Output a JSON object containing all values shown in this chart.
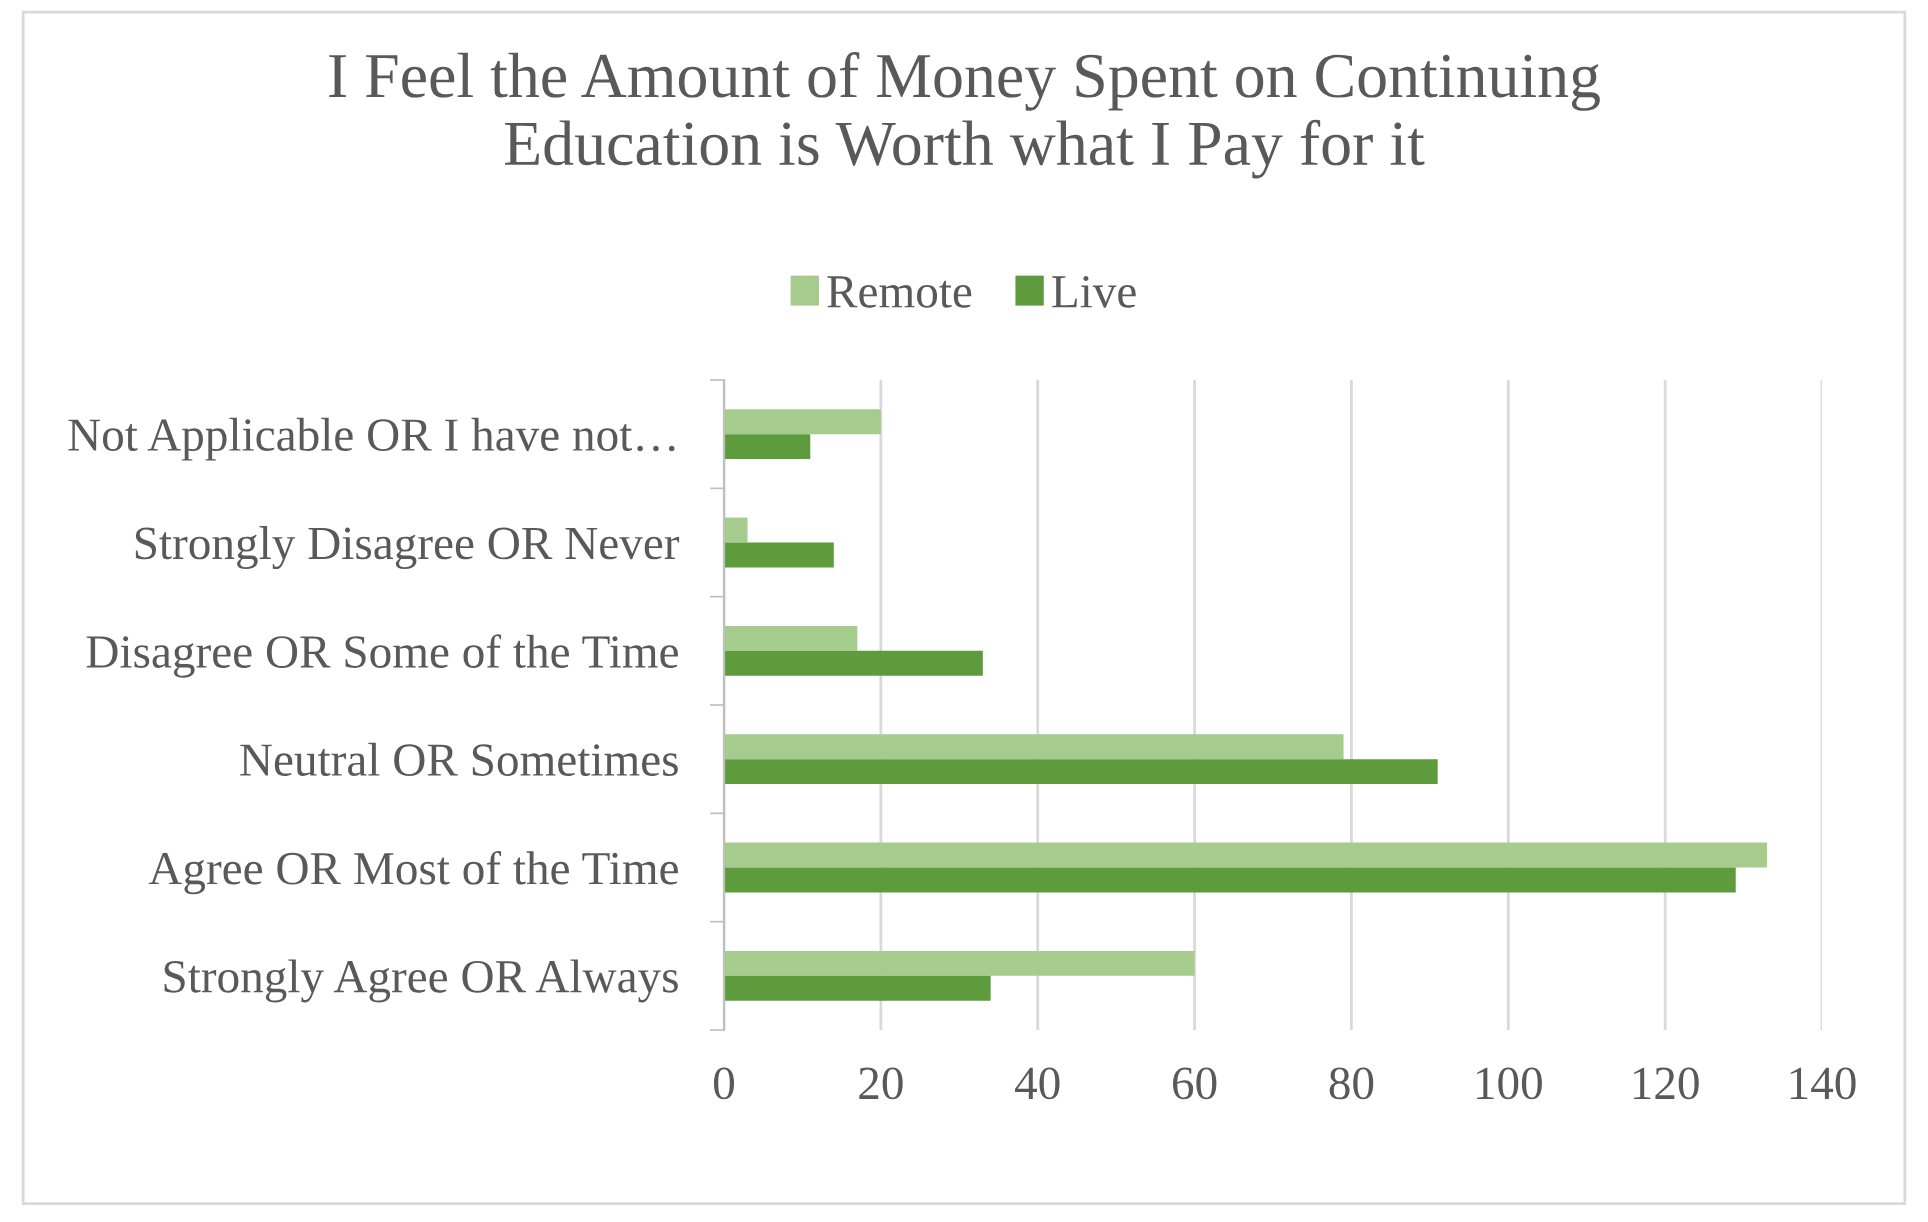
{
  "chart_data": {
    "type": "bar",
    "orientation": "horizontal",
    "title": "I Feel the Amount of Money Spent on Continuing\nEducation is Worth what I Pay for it",
    "categories": [
      "Not Applicable OR I have not…",
      "Strongly Disagree OR Never",
      "Disagree OR Some of the Time",
      "Neutral OR Sometimes",
      "Agree OR Most of the Time",
      "Strongly Agree OR Always"
    ],
    "series": [
      {
        "name": "Remote",
        "color": "#a5cc8c",
        "values": [
          20,
          3,
          17,
          79,
          133,
          60
        ]
      },
      {
        "name": "Live",
        "color": "#5e9b3c",
        "values": [
          11,
          14,
          33,
          91,
          129,
          34
        ]
      }
    ],
    "xlim": [
      0,
      140
    ],
    "xticks": [
      0,
      20,
      40,
      60,
      80,
      100,
      120,
      140
    ],
    "grid": "x",
    "legend": "top"
  }
}
